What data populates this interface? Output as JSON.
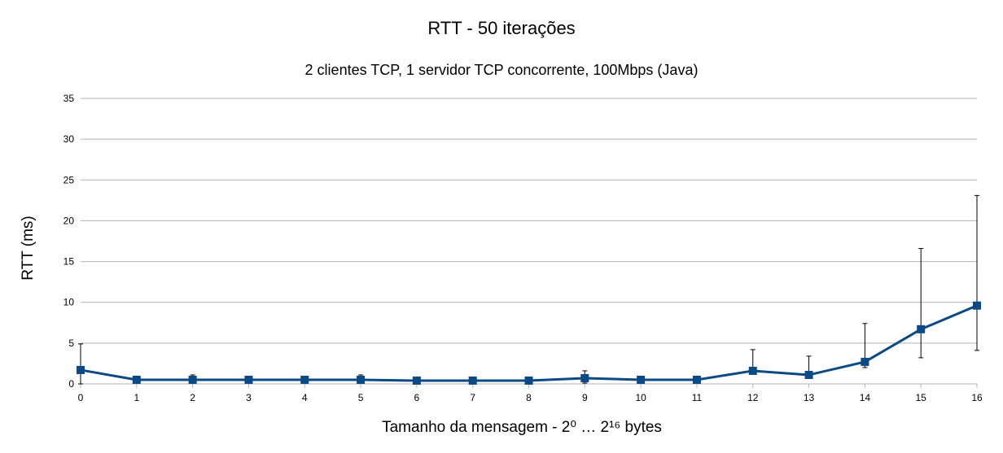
{
  "chart_data": {
    "type": "line",
    "title": "RTT - 50 iterações",
    "subtitle": "2 clientes TCP, 1 servidor TCP concorrente, 100Mbps (Java)",
    "xlabel": "Tamanho da mensagem - 2⁰ … 2¹⁶ bytes",
    "ylabel": "RTT (ms)",
    "x": [
      0,
      1,
      2,
      3,
      4,
      5,
      6,
      7,
      8,
      9,
      10,
      11,
      12,
      13,
      14,
      15,
      16
    ],
    "x_tick_labels": [
      "0",
      "1",
      "2",
      "3",
      "4",
      "5",
      "6",
      "7",
      "8",
      "9",
      "10",
      "11",
      "12",
      "13",
      "14",
      "15",
      "16"
    ],
    "y_ticks": [
      0,
      5,
      10,
      15,
      20,
      25,
      30,
      35
    ],
    "ylim": [
      0,
      35
    ],
    "grid": "horizontal",
    "legend": "none",
    "series": [
      {
        "color": "#0b4a86",
        "marker": "square",
        "values": [
          1.7,
          0.5,
          0.5,
          0.5,
          0.5,
          0.5,
          0.4,
          0.4,
          0.4,
          0.7,
          0.5,
          0.5,
          1.6,
          1.1,
          2.7,
          6.7,
          9.6
        ],
        "error_upper": [
          4.9,
          0.8,
          1.1,
          0.8,
          0.9,
          1.1,
          0.6,
          0.6,
          0.6,
          1.6,
          0.7,
          0.8,
          4.2,
          3.4,
          7.4,
          16.6,
          23.1
        ],
        "error_lower": [
          0.0,
          0.2,
          0.2,
          0.2,
          0.2,
          0.2,
          0.2,
          0.2,
          0.2,
          0.1,
          0.2,
          0.2,
          1.2,
          0.8,
          2.0,
          3.2,
          4.1
        ]
      }
    ]
  }
}
